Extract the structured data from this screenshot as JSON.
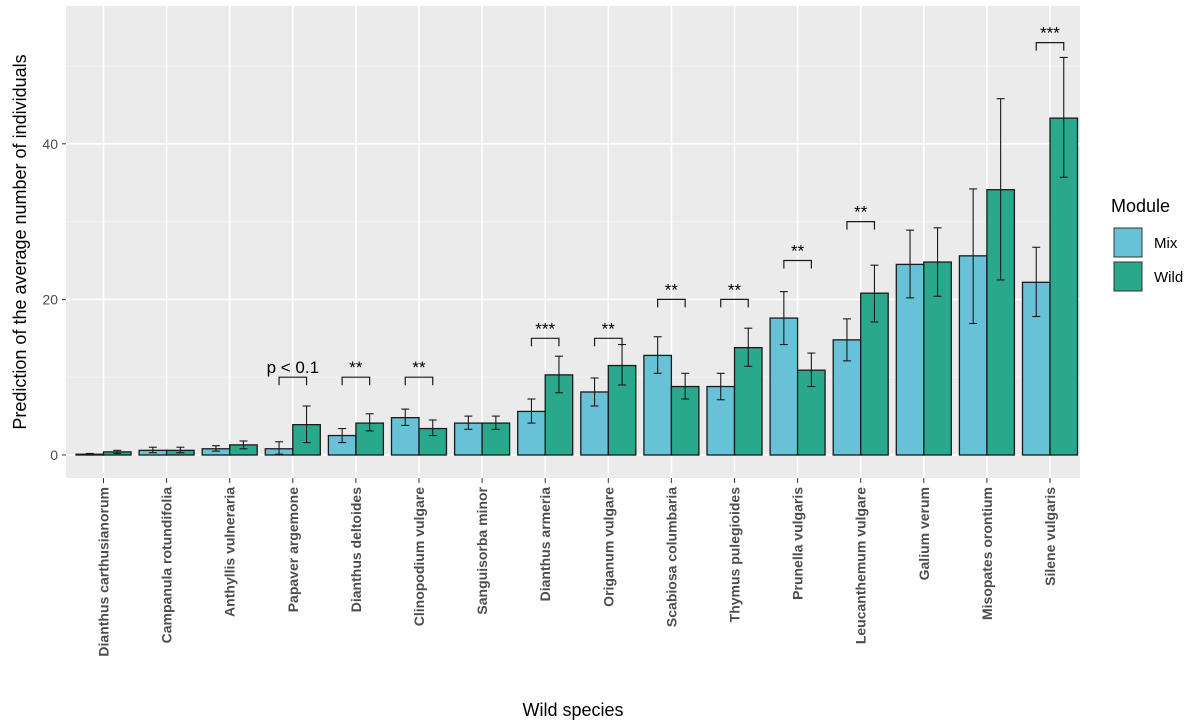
{
  "chart_data": {
    "type": "bar",
    "xlabel": "Wild species",
    "ylabel": "Prediction of the average number of individuals",
    "ylim": [
      -3,
      57
    ],
    "yticks": [
      0,
      20,
      40
    ],
    "grid": true,
    "legend": {
      "title": "Module",
      "placement": "right",
      "entries": [
        "Mix",
        "Wild"
      ]
    },
    "colors": {
      "Mix": "#67c1d7",
      "Wild": "#2aa88c",
      "panel": "#ebebeb",
      "grid": "#ffffff"
    },
    "categories": [
      "Dianthus carthusianorum",
      "Campanula rotundifolia",
      "Anthyllis vulneraria",
      "Papaver argemone",
      "Dianthus deltoides",
      "Clinopodium vulgare",
      "Sanguisorba minor",
      "Dianthus armeria",
      "Origanum vulgare",
      "Scabiosa columbaria",
      "Thymus pulegioides",
      "Prunella vulgaris",
      "Leucanthemum vulgare",
      "Galium verum",
      "Misopates orontium",
      "Silene vulgaris"
    ],
    "series": [
      {
        "name": "Mix",
        "values": [
          0.1,
          0.6,
          0.8,
          0.8,
          2.5,
          4.8,
          4.1,
          5.6,
          8.1,
          12.8,
          8.8,
          17.6,
          14.8,
          24.5,
          25.6,
          22.2
        ],
        "lower": [
          0.0,
          0.3,
          0.5,
          0.1,
          1.6,
          3.8,
          3.3,
          4.1,
          6.3,
          10.5,
          7.1,
          14.2,
          12.1,
          20.2,
          16.9,
          17.8
        ],
        "upper": [
          0.2,
          1.0,
          1.2,
          1.7,
          3.4,
          5.9,
          5.0,
          7.2,
          9.9,
          15.2,
          10.5,
          21.0,
          17.5,
          28.9,
          34.2,
          26.7
        ]
      },
      {
        "name": "Wild",
        "values": [
          0.4,
          0.6,
          1.3,
          3.9,
          4.1,
          3.4,
          4.1,
          10.3,
          11.5,
          8.8,
          13.8,
          10.9,
          20.8,
          24.8,
          34.1,
          43.3
        ],
        "lower": [
          0.2,
          0.3,
          0.8,
          1.6,
          3.1,
          2.5,
          3.3,
          8.0,
          9.0,
          7.2,
          11.4,
          8.8,
          17.1,
          20.4,
          22.5,
          35.7
        ],
        "upper": [
          0.6,
          1.0,
          1.8,
          6.3,
          5.3,
          4.5,
          5.0,
          12.7,
          14.2,
          10.5,
          16.3,
          13.1,
          24.4,
          29.2,
          45.8,
          51.1
        ]
      }
    ],
    "annotations": [
      {
        "category": "Papaver argemone",
        "text": "p < 0.1",
        "y": 10.0
      },
      {
        "category": "Dianthus deltoides",
        "text": "**",
        "y": 10.0
      },
      {
        "category": "Clinopodium vulgare",
        "text": "**",
        "y": 10.0
      },
      {
        "category": "Dianthus armeria",
        "text": "***",
        "y": 15.0
      },
      {
        "category": "Origanum vulgare",
        "text": "**",
        "y": 15.0
      },
      {
        "category": "Scabiosa columbaria",
        "text": "**",
        "y": 20.0
      },
      {
        "category": "Thymus pulegioides",
        "text": "**",
        "y": 20.0
      },
      {
        "category": "Prunella vulgaris",
        "text": "**",
        "y": 25.0
      },
      {
        "category": "Leucanthemum vulgare",
        "text": "**",
        "y": 30.0
      },
      {
        "category": "Silene vulgaris",
        "text": "***",
        "y": 53.0
      }
    ]
  }
}
